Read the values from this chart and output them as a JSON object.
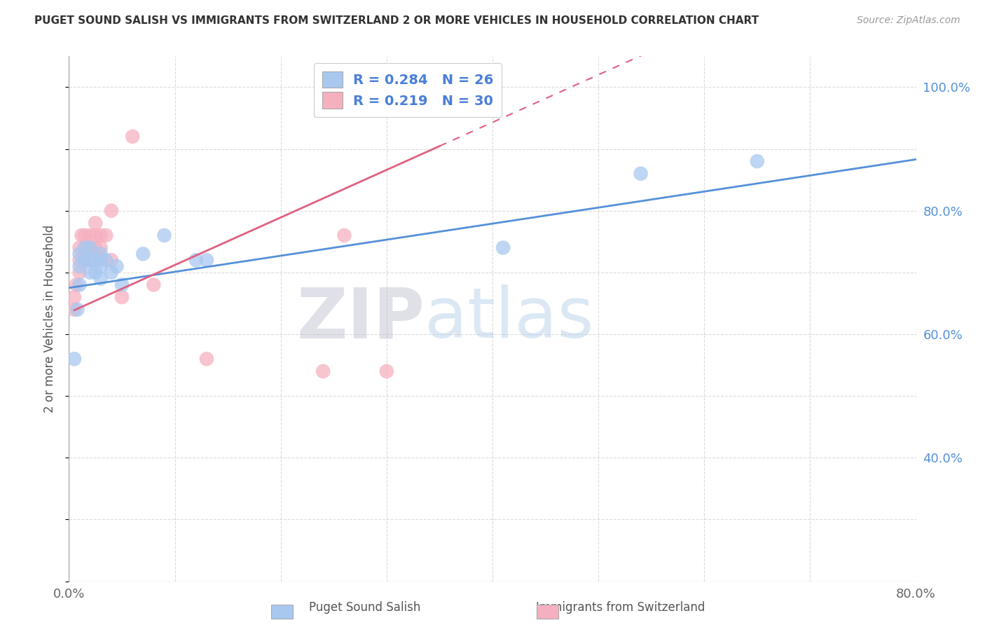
{
  "title": "PUGET SOUND SALISH VS IMMIGRANTS FROM SWITZERLAND 2 OR MORE VEHICLES IN HOUSEHOLD CORRELATION CHART",
  "source": "Source: ZipAtlas.com",
  "xlabel": "",
  "ylabel": "2 or more Vehicles in Household",
  "xlim": [
    0.0,
    0.8
  ],
  "ylim": [
    0.2,
    1.05
  ],
  "blue_R": 0.284,
  "blue_N": 26,
  "pink_R": 0.219,
  "pink_N": 30,
  "blue_color": "#A8C8F0",
  "pink_color": "#F5B0C0",
  "blue_line_color": "#5590D9",
  "pink_line_color": "#E06080",
  "watermark_zip": "ZIP",
  "watermark_atlas": "atlas",
  "blue_scatter_x": [
    0.005,
    0.008,
    0.01,
    0.01,
    0.01,
    0.015,
    0.015,
    0.02,
    0.02,
    0.02,
    0.025,
    0.025,
    0.03,
    0.03,
    0.03,
    0.035,
    0.04,
    0.045,
    0.05,
    0.07,
    0.09,
    0.12,
    0.13,
    0.41,
    0.54,
    0.65
  ],
  "blue_scatter_y": [
    0.56,
    0.64,
    0.68,
    0.71,
    0.73,
    0.72,
    0.74,
    0.7,
    0.72,
    0.74,
    0.7,
    0.72,
    0.69,
    0.71,
    0.73,
    0.72,
    0.7,
    0.71,
    0.68,
    0.73,
    0.76,
    0.72,
    0.72,
    0.74,
    0.86,
    0.88
  ],
  "pink_scatter_x": [
    0.005,
    0.005,
    0.007,
    0.01,
    0.01,
    0.01,
    0.012,
    0.015,
    0.015,
    0.015,
    0.018,
    0.02,
    0.02,
    0.02,
    0.025,
    0.025,
    0.025,
    0.03,
    0.03,
    0.03,
    0.035,
    0.04,
    0.04,
    0.05,
    0.06,
    0.08,
    0.13,
    0.24,
    0.26,
    0.3
  ],
  "pink_scatter_y": [
    0.64,
    0.66,
    0.68,
    0.7,
    0.72,
    0.74,
    0.76,
    0.72,
    0.74,
    0.76,
    0.74,
    0.72,
    0.74,
    0.76,
    0.74,
    0.76,
    0.78,
    0.72,
    0.74,
    0.76,
    0.76,
    0.72,
    0.8,
    0.66,
    0.92,
    0.68,
    0.56,
    0.54,
    0.76,
    0.54
  ],
  "pink_line_x_start": 0.005,
  "pink_line_x_end": 0.35,
  "pink_line_dashed_x_start": 0.35,
  "pink_line_dashed_x_end": 0.8,
  "ytick_positions": [
    0.2,
    0.3,
    0.4,
    0.5,
    0.6,
    0.7,
    0.8,
    0.9,
    1.0
  ],
  "ytick_labels_right": [
    "",
    "",
    "40.0%",
    "",
    "60.0%",
    "",
    "80.0%",
    "",
    "100.0%"
  ]
}
